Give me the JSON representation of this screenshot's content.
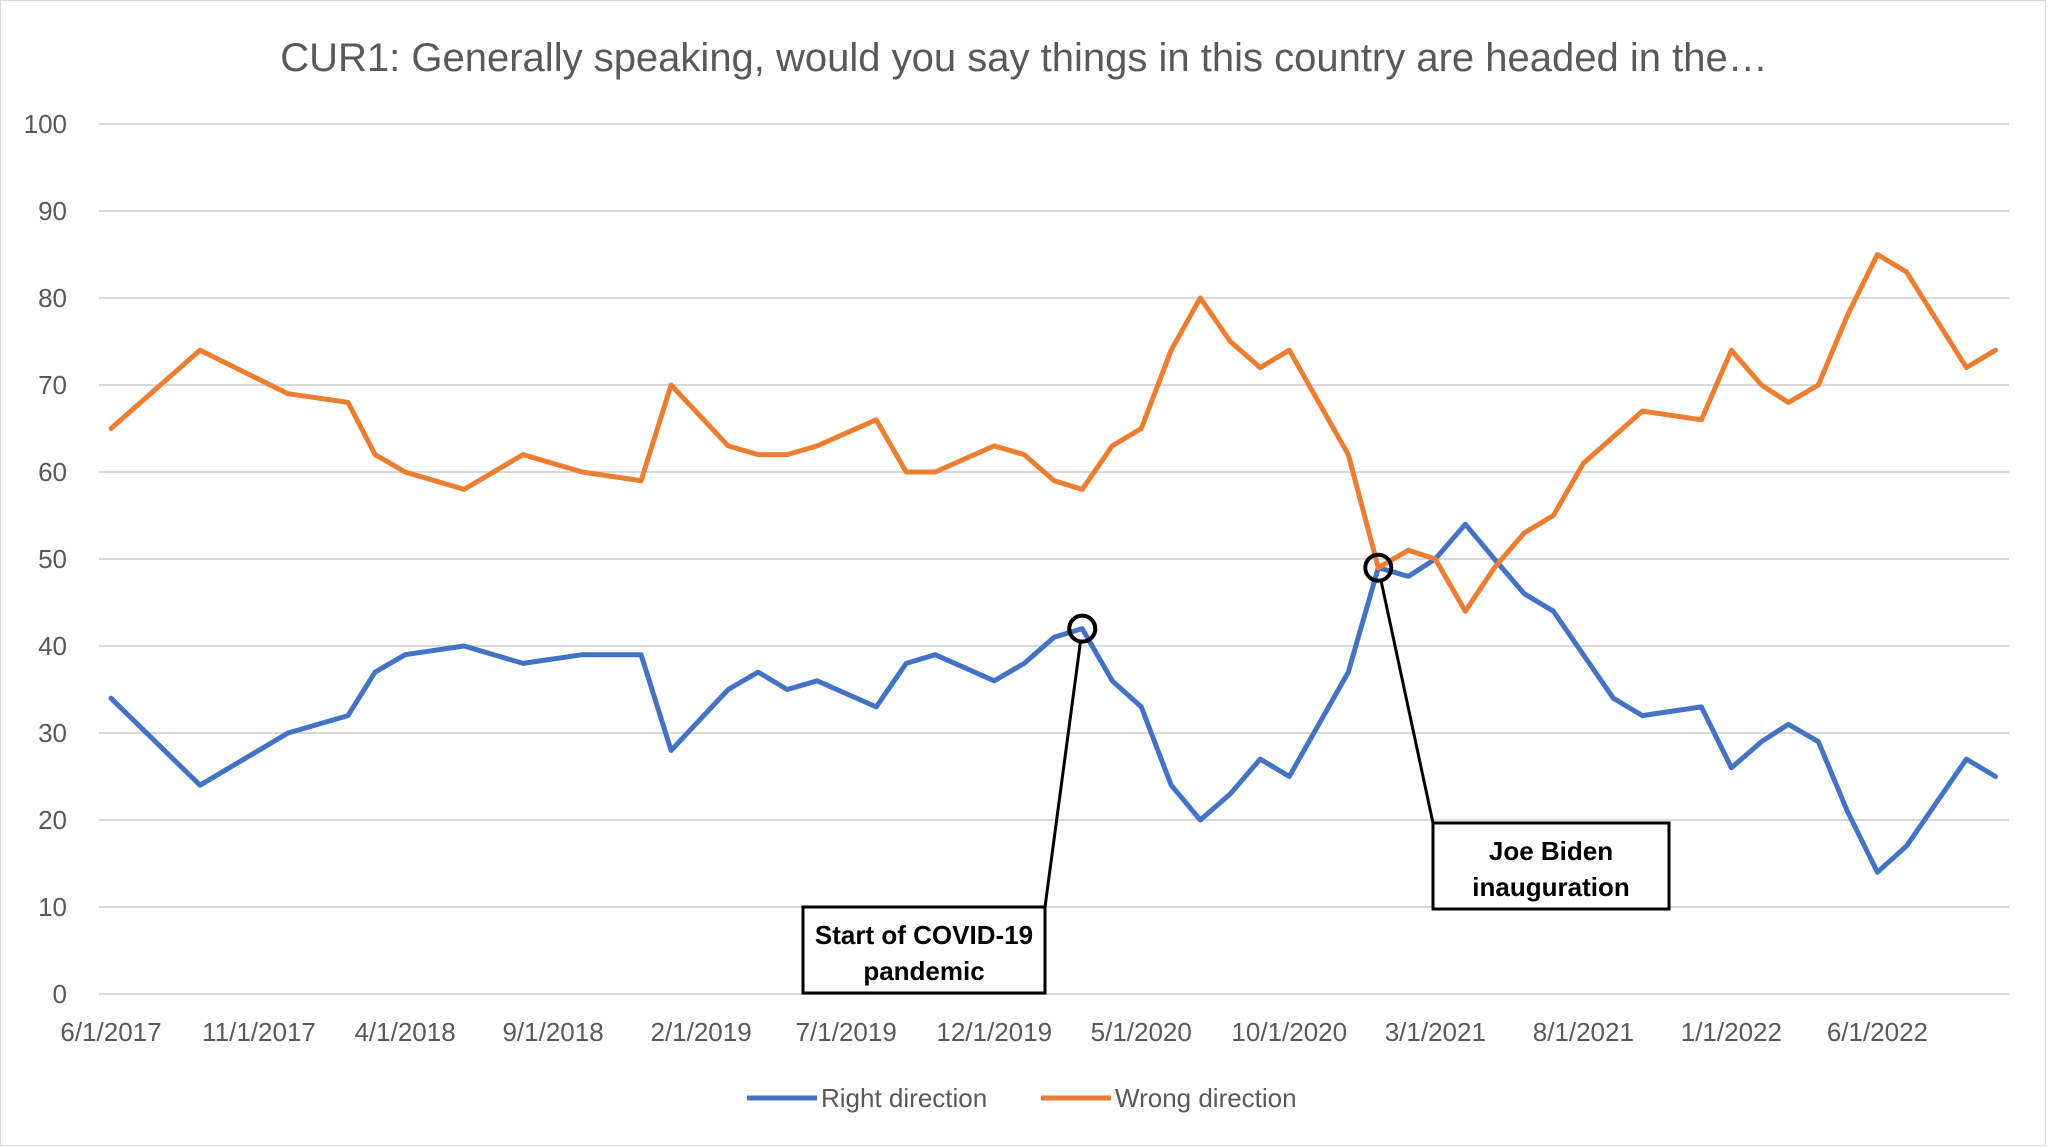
{
  "chart_data": {
    "type": "line",
    "title": "CUR1: Generally speaking, would you say things in this country are headed in the…",
    "xlabel": "",
    "ylabel": "",
    "ylim": [
      0,
      100
    ],
    "yticks": [
      0,
      10,
      20,
      30,
      40,
      50,
      60,
      70,
      80,
      90,
      100
    ],
    "xtick_labels": [
      "6/1/2017",
      "11/1/2017",
      "4/1/2018",
      "9/1/2018",
      "2/1/2019",
      "7/1/2019",
      "12/1/2019",
      "5/1/2020",
      "10/1/2020",
      "3/1/2021",
      "8/1/2021",
      "1/1/2022",
      "6/1/2022"
    ],
    "xlim": [
      "2017-06-01",
      "2022-10-15"
    ],
    "grid": true,
    "legend_position": "bottom",
    "series": [
      {
        "name": "Right direction",
        "color": "#4472C4",
        "points": [
          [
            "2017-06-01",
            34
          ],
          [
            "2017-09-01",
            24
          ],
          [
            "2017-12-01",
            30
          ],
          [
            "2018-02-01",
            32
          ],
          [
            "2018-03-01",
            37
          ],
          [
            "2018-04-01",
            39
          ],
          [
            "2018-06-01",
            40
          ],
          [
            "2018-08-01",
            38
          ],
          [
            "2018-10-01",
            39
          ],
          [
            "2018-12-01",
            39
          ],
          [
            "2019-01-01",
            28
          ],
          [
            "2019-03-01",
            35
          ],
          [
            "2019-04-01",
            37
          ],
          [
            "2019-05-01",
            35
          ],
          [
            "2019-06-01",
            36
          ],
          [
            "2019-08-01",
            33
          ],
          [
            "2019-09-01",
            38
          ],
          [
            "2019-10-01",
            39
          ],
          [
            "2019-12-01",
            36
          ],
          [
            "2020-01-01",
            38
          ],
          [
            "2020-02-01",
            41
          ],
          [
            "2020-03-01",
            42
          ],
          [
            "2020-04-01",
            36
          ],
          [
            "2020-05-01",
            33
          ],
          [
            "2020-06-01",
            24
          ],
          [
            "2020-07-01",
            20
          ],
          [
            "2020-08-01",
            23
          ],
          [
            "2020-09-01",
            27
          ],
          [
            "2020-10-01",
            25
          ],
          [
            "2020-12-01",
            37
          ],
          [
            "2021-01-01",
            49
          ],
          [
            "2021-02-01",
            48
          ],
          [
            "2021-03-01",
            50
          ],
          [
            "2021-04-01",
            54
          ],
          [
            "2021-05-01",
            50
          ],
          [
            "2021-06-01",
            46
          ],
          [
            "2021-07-01",
            44
          ],
          [
            "2021-09-01",
            34
          ],
          [
            "2021-10-01",
            32
          ],
          [
            "2021-12-01",
            33
          ],
          [
            "2022-01-01",
            26
          ],
          [
            "2022-02-01",
            29
          ],
          [
            "2022-03-01",
            31
          ],
          [
            "2022-04-01",
            29
          ],
          [
            "2022-05-01",
            21
          ],
          [
            "2022-06-01",
            14
          ],
          [
            "2022-07-01",
            17
          ],
          [
            "2022-09-01",
            27
          ],
          [
            "2022-10-01",
            25
          ]
        ]
      },
      {
        "name": "Wrong direction",
        "color": "#ED7D31",
        "points": [
          [
            "2017-06-01",
            65
          ],
          [
            "2017-09-01",
            74
          ],
          [
            "2017-12-01",
            69
          ],
          [
            "2018-02-01",
            68
          ],
          [
            "2018-03-01",
            62
          ],
          [
            "2018-04-01",
            60
          ],
          [
            "2018-06-01",
            58
          ],
          [
            "2018-08-01",
            62
          ],
          [
            "2018-10-01",
            60
          ],
          [
            "2018-12-01",
            59
          ],
          [
            "2019-01-01",
            70
          ],
          [
            "2019-03-01",
            63
          ],
          [
            "2019-04-01",
            62
          ],
          [
            "2019-05-01",
            62
          ],
          [
            "2019-06-01",
            63
          ],
          [
            "2019-08-01",
            66
          ],
          [
            "2019-09-01",
            60
          ],
          [
            "2019-10-01",
            60
          ],
          [
            "2019-12-01",
            63
          ],
          [
            "2020-01-01",
            62
          ],
          [
            "2020-02-01",
            59
          ],
          [
            "2020-03-01",
            58
          ],
          [
            "2020-04-01",
            63
          ],
          [
            "2020-05-01",
            65
          ],
          [
            "2020-06-01",
            74
          ],
          [
            "2020-07-01",
            80
          ],
          [
            "2020-08-01",
            75
          ],
          [
            "2020-09-01",
            72
          ],
          [
            "2020-10-01",
            74
          ],
          [
            "2020-12-01",
            62
          ],
          [
            "2021-01-01",
            49
          ],
          [
            "2021-02-01",
            51
          ],
          [
            "2021-03-01",
            50
          ],
          [
            "2021-04-01",
            44
          ],
          [
            "2021-05-01",
            49
          ],
          [
            "2021-06-01",
            53
          ],
          [
            "2021-07-01",
            55
          ],
          [
            "2021-08-01",
            61
          ],
          [
            "2021-10-01",
            67
          ],
          [
            "2021-12-01",
            66
          ],
          [
            "2022-01-01",
            74
          ],
          [
            "2022-02-01",
            70
          ],
          [
            "2022-03-01",
            68
          ],
          [
            "2022-04-01",
            70
          ],
          [
            "2022-05-01",
            78
          ],
          [
            "2022-06-01",
            85
          ],
          [
            "2022-07-01",
            83
          ],
          [
            "2022-09-01",
            72
          ],
          [
            "2022-10-01",
            74
          ]
        ]
      }
    ],
    "annotations": [
      {
        "text_lines": [
          "Start of COVID-19",
          "pandemic"
        ],
        "point": [
          "2020-03-01",
          42
        ]
      },
      {
        "text_lines": [
          "Joe Biden",
          "inauguration"
        ],
        "point": [
          "2021-01-01",
          49
        ]
      }
    ]
  }
}
